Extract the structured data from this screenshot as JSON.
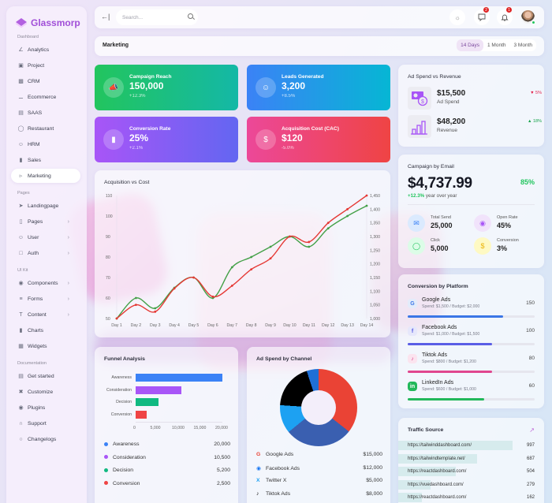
{
  "app": {
    "name": "Glassmorp"
  },
  "sidebar": {
    "sections": [
      {
        "label": "Dashboard",
        "items": [
          {
            "label": "Analytics",
            "icon": "chart-line-icon"
          },
          {
            "label": "Project",
            "icon": "clipboard-icon"
          },
          {
            "label": "CRM",
            "icon": "contact-card-icon"
          },
          {
            "label": "Ecommerce",
            "icon": "cart-icon"
          },
          {
            "label": "SAAS",
            "icon": "window-icon"
          },
          {
            "label": "Restaurant",
            "icon": "cooking-pot-icon"
          },
          {
            "label": "HRM",
            "icon": "users-icon"
          },
          {
            "label": "Sales",
            "icon": "bar-chart-icon"
          },
          {
            "label": "Marketing",
            "icon": "megaphone-icon",
            "active": true
          }
        ]
      },
      {
        "label": "Pages",
        "items": [
          {
            "label": "Landingpage",
            "icon": "rocket-icon"
          },
          {
            "label": "Pages",
            "icon": "page-icon",
            "chevron": true
          },
          {
            "label": "User",
            "icon": "user-icon",
            "chevron": true
          },
          {
            "label": "Auth",
            "icon": "lock-icon",
            "chevron": true
          }
        ]
      },
      {
        "label": "UI Kit",
        "items": [
          {
            "label": "Components",
            "icon": "components-icon",
            "chevron": true
          },
          {
            "label": "Forms",
            "icon": "form-lines-icon",
            "chevron": true
          },
          {
            "label": "Content",
            "icon": "text-icon",
            "chevron": true
          },
          {
            "label": "Charts",
            "icon": "bar-chart-icon"
          },
          {
            "label": "Widgets",
            "icon": "widgets-icon"
          }
        ]
      },
      {
        "label": "Documentation",
        "items": [
          {
            "label": "Get started",
            "icon": "document-icon"
          },
          {
            "label": "Customize",
            "icon": "tools-icon"
          },
          {
            "label": "Plugins",
            "icon": "plugin-icon"
          },
          {
            "label": "Support",
            "icon": "headset-icon"
          },
          {
            "label": "Changelogs",
            "icon": "changelog-icon"
          }
        ]
      }
    ]
  },
  "topbar": {
    "search_placeholder": "Search...",
    "messages_badge": "2",
    "notifications_badge": "1"
  },
  "header": {
    "title": "Marketing",
    "ranges": [
      "14 Days",
      "1 Month",
      "3 Month"
    ],
    "active_range": "14 Days"
  },
  "kpis": [
    {
      "label": "Campaign Reach",
      "value": "150,000",
      "change": "+12.3%",
      "icon": "megaphone-icon",
      "from": "#22c55e",
      "to": "#14b8a6"
    },
    {
      "label": "Leads Generated",
      "value": "3,200",
      "change": "+8.5%",
      "icon": "users-icon",
      "from": "#3b82f6",
      "to": "#06b6d4"
    },
    {
      "label": "Conversion Rate",
      "value": "25%",
      "change": "+2.1%",
      "icon": "bar-chart-icon",
      "from": "#a855f7",
      "to": "#6366f1"
    },
    {
      "label": "Acquisition Cost (CAC)",
      "value": "$120",
      "change": "-5.0%",
      "icon": "dollar-icon",
      "from": "#ec4899",
      "to": "#ef4444"
    }
  ],
  "ad_spend_revenue": {
    "title": "Ad Spend vs Revenue",
    "rows": [
      {
        "value": "$15,500",
        "label": "Ad Spend",
        "change": "5%",
        "direction": "down",
        "color": "#e11d48"
      },
      {
        "value": "$48,200",
        "label": "Revenue",
        "change": "18%",
        "direction": "up",
        "color": "#16a34a"
      }
    ]
  },
  "email": {
    "title": "Campaign by Email",
    "value": "$4,737.99",
    "percent": "85%",
    "growth": "+12.3%",
    "growth_label": "year over year",
    "stats": [
      {
        "label": "Total Send",
        "value": "25,000",
        "icon": "mail-icon"
      },
      {
        "label": "Open Rate",
        "value": "45%",
        "icon": "eye-icon"
      },
      {
        "label": "Click",
        "value": "5,000",
        "icon": "mouse-icon"
      },
      {
        "label": "Conversion",
        "value": "3%",
        "icon": "dollar-icon"
      }
    ]
  },
  "platforms": {
    "title": "Conversion by Platform",
    "items": [
      {
        "name": "Google Ads",
        "detail": "Spend: $1,500 / Budget: $2,000",
        "value": "150",
        "pct": 75,
        "color": "#3b76e6"
      },
      {
        "name": "Facebook Ads",
        "detail": "Spend: $1,000 / Budget: $1,500",
        "value": "100",
        "pct": 66.7,
        "color": "#5a5ee6"
      },
      {
        "name": "Tiktok Ads",
        "detail": "Spend: $800 / Budget: $1,200",
        "value": "80",
        "pct": 66.7,
        "color": "#e0468e"
      },
      {
        "name": "LinkedIn Ads",
        "detail": "Spend: $600 / Budget: $1,000",
        "value": "60",
        "pct": 60,
        "color": "#22b85a"
      }
    ]
  },
  "traffic": {
    "title": "Traffic Source",
    "rows": [
      {
        "url": "https://tailwinddashboard.com/",
        "value": "997"
      },
      {
        "url": "https://tailwindtemplate.net/",
        "value": "687"
      },
      {
        "url": "https://reactdashboard.com/",
        "value": "504"
      },
      {
        "url": "https://vuedashboard.com/",
        "value": "279"
      },
      {
        "url": "https://reactdashboard.com/",
        "value": "162"
      }
    ]
  },
  "funnel": {
    "title": "Funnel Analysis",
    "legend": [
      {
        "label": "Awareness",
        "value": "20,000",
        "color": "#3b82f6"
      },
      {
        "label": "Consideration",
        "value": "10,500",
        "color": "#a855f7"
      },
      {
        "label": "Decision",
        "value": "5,200",
        "color": "#10b981"
      },
      {
        "label": "Conversion",
        "value": "2,500",
        "color": "#ef4444"
      }
    ]
  },
  "channel": {
    "title": "Ad Spend by Channel",
    "legend": [
      {
        "label": "Google Ads",
        "value": "$15,000",
        "icon": "google-icon",
        "color": "#ea4335"
      },
      {
        "label": "Facebook Ads",
        "value": "$12,000",
        "icon": "facebook-icon",
        "color": "#3a5fb0"
      },
      {
        "label": "Twitter X",
        "value": "$5,000",
        "icon": "twitter-x-icon",
        "color": "#1da1f2"
      },
      {
        "label": "Tiktok Ads",
        "value": "$8,000",
        "icon": "tiktok-icon",
        "color": "#000000"
      }
    ]
  },
  "acq_chart": {
    "title": "Acquisition vs Cost"
  },
  "chart_data": [
    {
      "type": "line",
      "title": "Acquisition vs Cost",
      "categories": [
        "Day 1",
        "Day 2",
        "Day 3",
        "Day 4",
        "Day 5",
        "Day 6",
        "Day 7",
        "Day 8",
        "Day 9",
        "Day 10",
        "Day 11",
        "Day 12",
        "Day 13",
        "Day 14"
      ],
      "series": [
        {
          "name": "Acquisition",
          "axis": "left",
          "color": "#43a047",
          "values": [
            50,
            60,
            55,
            65,
            70,
            60,
            75,
            80,
            85,
            90,
            85,
            94,
            100,
            105
          ]
        },
        {
          "name": "Cost",
          "axis": "right",
          "color": "#e53935",
          "values": [
            1000,
            1050,
            1025,
            1110,
            1150,
            1080,
            1120,
            1180,
            1220,
            1300,
            1280,
            1350,
            1400,
            1450
          ]
        }
      ],
      "ylim_left": [
        50,
        110
      ],
      "yticks_left": [
        50,
        60,
        70,
        80,
        90,
        100,
        110
      ],
      "ylim_right": [
        1000,
        1450
      ],
      "yticks_right": [
        "1,000",
        "1,050",
        "1,100",
        "1,150",
        "1,200",
        "1,250",
        "1,300",
        "1,350",
        "1,400",
        "1,450"
      ],
      "legend": "none",
      "grid": false
    },
    {
      "type": "bar",
      "orientation": "horizontal",
      "title": "Funnel Analysis",
      "categories": [
        "Awareness",
        "Consideration",
        "Decision",
        "Conversion"
      ],
      "values": [
        20000,
        10500,
        5200,
        2500
      ],
      "colors": [
        "#3b82f6",
        "#a855f7",
        "#10b981",
        "#ef4444"
      ],
      "xlim": [
        0,
        20000
      ],
      "xticks": [
        "0",
        "5,000",
        "10,000",
        "15,000",
        "20,000"
      ]
    },
    {
      "type": "pie",
      "donut": true,
      "title": "Ad Spend by Channel",
      "categories": [
        "Google Ads",
        "Facebook Ads",
        "Twitter X",
        "Tiktok Ads"
      ],
      "values": [
        15000,
        12000,
        5000,
        8000
      ],
      "colors": [
        "#ea4335",
        "#3a5fb0",
        "#1da1f2",
        "#000000"
      ]
    }
  ]
}
